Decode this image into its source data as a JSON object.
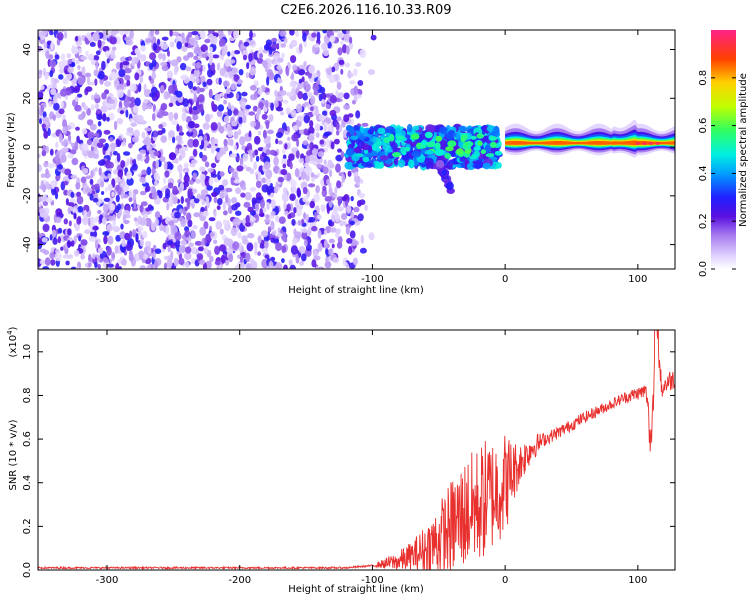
{
  "figure_title": "C2E6.2026.116.10.33.R09",
  "colors": {
    "spectrogram_sparse": "#7a2be0",
    "snr_line": "#e8302e",
    "frame": "#000000"
  },
  "chart_data": [
    {
      "type": "heatmap",
      "xlabel": "Height of straight line (km)",
      "ylabel": "Frequency (Hz)",
      "xlim": [
        -352,
        128
      ],
      "ylim": [
        -50,
        48
      ],
      "x_ticks": [
        -300,
        -200,
        -100,
        0,
        100
      ],
      "y_ticks": [
        -40,
        -20,
        0,
        20,
        40
      ],
      "grid": false,
      "regions": [
        {
          "kind": "scattered-noise",
          "x_range": [
            -352,
            -98
          ],
          "y_range": [
            -50,
            48
          ],
          "amplitude_range": [
            0.1,
            0.3
          ]
        },
        {
          "kind": "echo-cluster",
          "x_range": [
            -118,
            -5
          ],
          "y_range": [
            -8,
            8
          ],
          "amplitude_range": [
            0.2,
            0.5
          ]
        },
        {
          "kind": "echo-tail",
          "x_range": [
            -50,
            -40
          ],
          "y_range": [
            -20,
            -5
          ],
          "amplitude_range": [
            0.15,
            0.3
          ]
        },
        {
          "kind": "narrow-band",
          "x_range": [
            0,
            128
          ],
          "y_range": [
            -3,
            5
          ],
          "center_frequency": 1.5,
          "amplitude_range": [
            0.4,
            1.0
          ]
        }
      ],
      "colorbar": {
        "label": "Normalized spectral amplitude",
        "range": [
          0.0,
          1.0
        ],
        "ticks": [
          0.0,
          0.2,
          0.4,
          0.6,
          0.8
        ],
        "tick_labels": [
          "0.0",
          "0.2",
          "0.4",
          "0.6",
          "0.8"
        ]
      }
    },
    {
      "type": "line",
      "xlabel": "Height of straight line (km)",
      "ylabel": "SNR (10 * v/v)",
      "y_multiplier": "(x10",
      "y_multiplier_exp": "4",
      "y_multiplier_close": ")",
      "xlim": [
        -352,
        128
      ],
      "ylim": [
        0.0,
        1.1
      ],
      "x_ticks": [
        -300,
        -200,
        -100,
        0,
        100
      ],
      "y_ticks": [
        0.0,
        0.2,
        0.4,
        0.6,
        0.8,
        1.0
      ],
      "y_tick_labels": [
        "0.0",
        "0.2",
        "0.4",
        "0.6",
        "0.8",
        "1.0"
      ],
      "grid": false,
      "series": [
        {
          "x": [
            -352,
            -300,
            -200,
            -120,
            -100,
            -80,
            -60,
            -50,
            -40,
            -30,
            -20,
            -10,
            0,
            10,
            20,
            30,
            40,
            60,
            80,
            90,
            100,
            106,
            110,
            114,
            118,
            122,
            128
          ],
          "values": [
            0.01,
            0.01,
            0.01,
            0.01,
            0.02,
            0.04,
            0.09,
            0.14,
            0.2,
            0.26,
            0.3,
            0.35,
            0.4,
            0.48,
            0.56,
            0.6,
            0.63,
            0.7,
            0.76,
            0.79,
            0.81,
            0.82,
            0.65,
            1.1,
            0.83,
            0.86,
            0.88
          ],
          "noise_range": [
            [
              -70,
              0.07
            ],
            [
              -50,
              0.17
            ],
            [
              -35,
              0.25
            ],
            [
              -15,
              0.28
            ],
            [
              0,
              0.24
            ],
            [
              10,
              0.1
            ],
            [
              30,
              0.03
            ],
            [
              80,
              0.025
            ],
            [
              100,
              0.03
            ],
            [
              115,
              0.05
            ]
          ]
        }
      ]
    }
  ]
}
